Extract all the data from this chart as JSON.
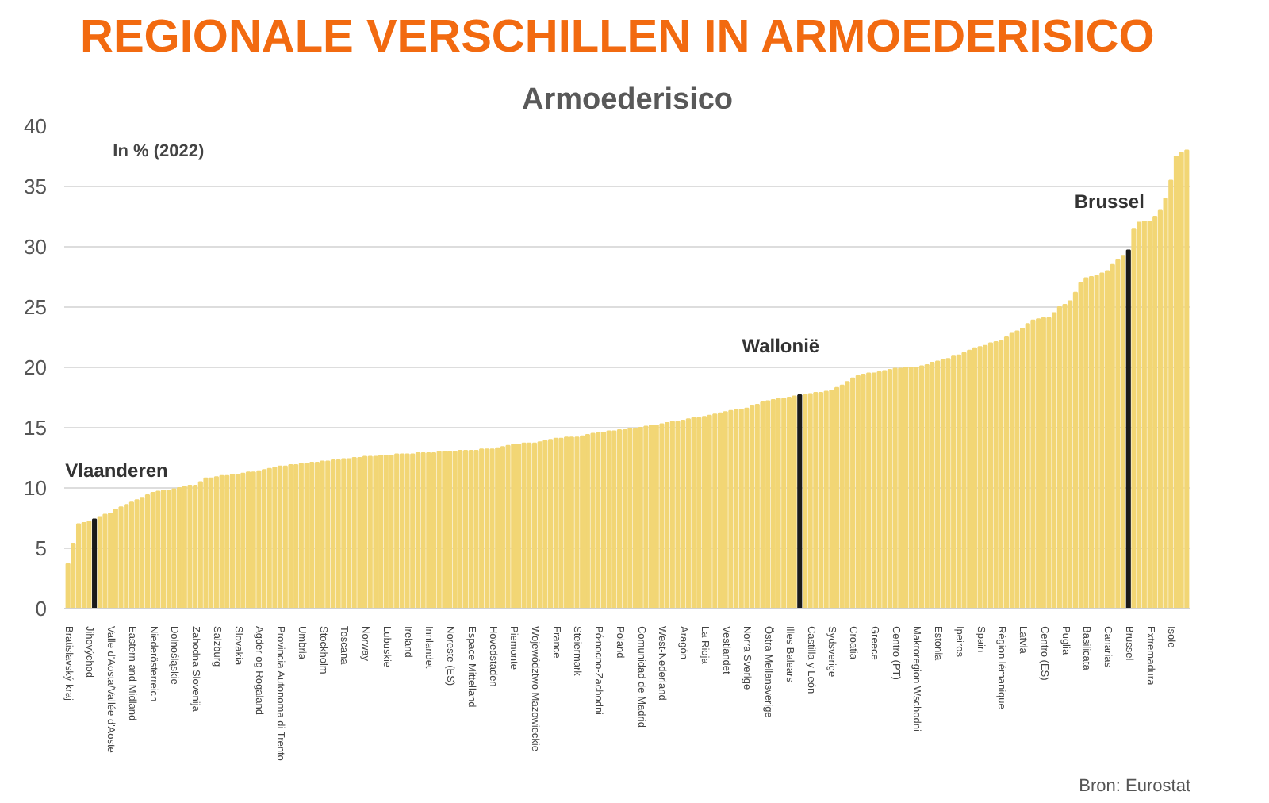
{
  "chart_data": {
    "type": "bar",
    "title": "REGIONALE VERSCHILLEN IN ARMOEDERISICO",
    "subtitle": "Armoederisico",
    "categories": [
      "Bratislavský kraj",
      null,
      null,
      null,
      "Jihovýchod",
      null,
      null,
      null,
      "Valle d'Aosta/Vallée d'Aoste",
      null,
      null,
      null,
      "Eastern and Midland",
      null,
      null,
      null,
      "Niederösterreich",
      null,
      null,
      null,
      "Dolnośląskie",
      null,
      null,
      null,
      "Zahodna Slovenija",
      null,
      null,
      null,
      "Salzburg",
      null,
      null,
      null,
      "Slovakia",
      null,
      null,
      null,
      "Agder og Rogaland",
      null,
      null,
      null,
      "Provincia Autonoma di Trento",
      null,
      null,
      null,
      "Umbria",
      null,
      null,
      null,
      "Stockholm",
      null,
      null,
      null,
      "Toscana",
      null,
      null,
      null,
      "Norway",
      null,
      null,
      null,
      "Lubuskie",
      null,
      null,
      null,
      "Ireland",
      null,
      null,
      null,
      "Innlandet",
      null,
      null,
      null,
      "Noreste (ES)",
      null,
      null,
      null,
      "Espace Mittelland",
      null,
      null,
      null,
      "Hovedstaden",
      null,
      null,
      null,
      "Piemonte",
      null,
      null,
      null,
      "Województwo Mazowieckie",
      null,
      null,
      null,
      "France",
      null,
      null,
      null,
      "Steiermark",
      null,
      null,
      null,
      "Północno-Zachodni",
      null,
      null,
      null,
      "Poland",
      null,
      null,
      null,
      "Comunidad de Madrid",
      null,
      null,
      null,
      "West-Nederland",
      null,
      null,
      null,
      "Aragón",
      null,
      null,
      null,
      "La Rioja",
      null,
      null,
      null,
      "Vestlandet",
      null,
      null,
      null,
      "Norra Sverige",
      null,
      null,
      null,
      "Östra Mellansverige",
      null,
      null,
      null,
      "Illes Balears",
      null,
      null,
      null,
      "Castilla y León",
      null,
      null,
      null,
      "Sydsverige",
      null,
      null,
      null,
      "Croatia",
      null,
      null,
      null,
      "Greece",
      null,
      null,
      null,
      "Centro (PT)",
      null,
      null,
      null,
      "Makroregion Wschodni",
      null,
      null,
      null,
      "Estonia",
      null,
      null,
      null,
      "Ipeiros",
      null,
      null,
      null,
      "Spain",
      null,
      null,
      null,
      "Région lémanique",
      null,
      null,
      null,
      "Latvia",
      null,
      null,
      null,
      "Centro (ES)",
      null,
      null,
      null,
      "Puglia",
      null,
      null,
      null,
      "Basilicata",
      null,
      null,
      null,
      "Canarias",
      null,
      null,
      null,
      "Brussel",
      null,
      null,
      null,
      "Extremadura",
      null,
      null,
      null,
      "Isole",
      null,
      null,
      null
    ],
    "values": [
      3.7,
      5.4,
      7.0,
      7.1,
      7.2,
      7.4,
      7.6,
      7.8,
      7.9,
      8.2,
      8.4,
      8.6,
      8.8,
      9.0,
      9.2,
      9.4,
      9.6,
      9.7,
      9.8,
      9.8,
      9.9,
      10.0,
      10.1,
      10.2,
      10.2,
      10.5,
      10.8,
      10.8,
      10.9,
      11.0,
      11.0,
      11.1,
      11.1,
      11.2,
      11.3,
      11.3,
      11.4,
      11.5,
      11.6,
      11.7,
      11.8,
      11.8,
      11.9,
      11.9,
      12.0,
      12.0,
      12.1,
      12.1,
      12.2,
      12.2,
      12.3,
      12.3,
      12.4,
      12.4,
      12.5,
      12.5,
      12.6,
      12.6,
      12.6,
      12.7,
      12.7,
      12.7,
      12.8,
      12.8,
      12.8,
      12.8,
      12.9,
      12.9,
      12.9,
      12.9,
      13.0,
      13.0,
      13.0,
      13.0,
      13.1,
      13.1,
      13.1,
      13.1,
      13.2,
      13.2,
      13.2,
      13.3,
      13.4,
      13.5,
      13.6,
      13.6,
      13.7,
      13.7,
      13.7,
      13.8,
      13.9,
      14.0,
      14.1,
      14.1,
      14.2,
      14.2,
      14.2,
      14.3,
      14.4,
      14.5,
      14.6,
      14.6,
      14.7,
      14.7,
      14.8,
      14.8,
      14.9,
      14.9,
      15.0,
      15.1,
      15.2,
      15.2,
      15.3,
      15.4,
      15.5,
      15.5,
      15.6,
      15.7,
      15.8,
      15.8,
      15.9,
      16.0,
      16.1,
      16.2,
      16.3,
      16.4,
      16.5,
      16.5,
      16.6,
      16.8,
      16.9,
      17.1,
      17.2,
      17.3,
      17.4,
      17.4,
      17.5,
      17.6,
      17.7,
      17.7,
      17.8,
      17.9,
      17.9,
      18.0,
      18.1,
      18.3,
      18.5,
      18.8,
      19.1,
      19.3,
      19.4,
      19.5,
      19.5,
      19.6,
      19.7,
      19.8,
      19.9,
      19.9,
      20.0,
      20.0,
      20.0,
      20.1,
      20.2,
      20.4,
      20.5,
      20.6,
      20.7,
      20.9,
      21.0,
      21.2,
      21.4,
      21.6,
      21.7,
      21.8,
      22.0,
      22.1,
      22.2,
      22.5,
      22.8,
      23.0,
      23.2,
      23.6,
      23.9,
      24.0,
      24.1,
      24.1,
      24.5,
      25.0,
      25.2,
      25.5,
      26.2,
      27.0,
      27.4,
      27.5,
      27.6,
      27.8,
      28.0,
      28.5,
      28.9,
      29.2,
      29.7,
      31.5,
      32.0,
      32.1,
      32.1,
      32.5,
      33.0,
      34.0,
      35.5,
      37.5,
      37.8,
      38.0
    ],
    "colors": [
      "#f2d675",
      "#f2d675",
      "#f2d675",
      "#f2d675",
      "#f2d675",
      "#1a1a1a",
      "#f2d675",
      "#f2d675",
      "#f2d675",
      "#f2d675",
      "#f2d675",
      "#f2d675",
      "#f2d675",
      "#f2d675",
      "#f2d675",
      "#f2d675",
      "#f2d675",
      "#f2d675",
      "#f2d675",
      "#f2d675",
      "#f2d675",
      "#f2d675",
      "#f2d675",
      "#f2d675",
      "#f2d675",
      "#f2d675",
      "#f2d675",
      "#f2d675",
      "#f2d675",
      "#f2d675",
      "#f2d675",
      "#f2d675",
      "#f2d675",
      "#f2d675",
      "#f2d675",
      "#f2d675",
      "#f2d675",
      "#f2d675",
      "#f2d675",
      "#f2d675",
      "#f2d675",
      "#f2d675",
      "#f2d675",
      "#f2d675",
      "#f2d675",
      "#f2d675",
      "#f2d675",
      "#f2d675",
      "#f2d675",
      "#f2d675",
      "#f2d675",
      "#f2d675",
      "#f2d675",
      "#f2d675",
      "#f2d675",
      "#f2d675",
      "#f2d675",
      "#f2d675",
      "#f2d675",
      "#f2d675",
      "#f2d675",
      "#f2d675",
      "#f2d675",
      "#f2d675",
      "#f2d675",
      "#f2d675",
      "#f2d675",
      "#f2d675",
      "#f2d675",
      "#f2d675",
      "#f2d675",
      "#f2d675",
      "#f2d675",
      "#f2d675",
      "#f2d675",
      "#f2d675",
      "#f2d675",
      "#f2d675",
      "#f2d675",
      "#f2d675",
      "#f2d675",
      "#f2d675",
      "#f2d675",
      "#f2d675",
      "#f2d675",
      "#f2d675",
      "#f2d675",
      "#f2d675",
      "#f2d675",
      "#f2d675",
      "#f2d675",
      "#f2d675",
      "#f2d675",
      "#f2d675",
      "#f2d675",
      "#f2d675",
      "#f2d675",
      "#f2d675",
      "#f2d675",
      "#f2d675",
      "#f2d675",
      "#f2d675",
      "#f2d675",
      "#f2d675",
      "#f2d675",
      "#f2d675",
      "#f2d675",
      "#f2d675",
      "#f2d675",
      "#f2d675",
      "#f2d675",
      "#f2d675",
      "#f2d675",
      "#f2d675",
      "#f2d675",
      "#f2d675",
      "#f2d675",
      "#f2d675",
      "#f2d675",
      "#f2d675",
      "#f2d675",
      "#f2d675",
      "#f2d675",
      "#f2d675",
      "#f2d675",
      "#f2d675",
      "#f2d675",
      "#f2d675",
      "#f2d675",
      "#f2d675",
      "#f2d675",
      "#f2d675",
      "#f2d675",
      "#f2d675",
      "#f2d675",
      "#f2d675",
      "#f2d675",
      "#f2d675",
      "#1a1a1a",
      "#f2d675",
      "#f2d675",
      "#f2d675",
      "#f2d675",
      "#f2d675",
      "#f2d675",
      "#f2d675",
      "#f2d675",
      "#f2d675",
      "#f2d675",
      "#f2d675",
      "#f2d675",
      "#f2d675",
      "#f2d675",
      "#f2d675",
      "#f2d675",
      "#f2d675",
      "#f2d675",
      "#f2d675",
      "#f2d675",
      "#f2d675",
      "#f2d675",
      "#f2d675",
      "#f2d675",
      "#f2d675",
      "#f2d675",
      "#f2d675",
      "#f2d675",
      "#f2d675",
      "#f2d675",
      "#f2d675",
      "#f2d675",
      "#f2d675",
      "#f2d675",
      "#f2d675",
      "#f2d675",
      "#f2d675",
      "#f2d675",
      "#f2d675",
      "#f2d675",
      "#f2d675",
      "#f2d675",
      "#f2d675",
      "#f2d675",
      "#f2d675",
      "#f2d675",
      "#f2d675",
      "#f2d675",
      "#f2d675",
      "#f2d675",
      "#f2d675",
      "#f2d675",
      "#f2d675",
      "#f2d675",
      "#f2d675",
      "#f2d675",
      "#f2d675",
      "#f2d675",
      "#f2d675",
      "#f2d675",
      "#f2d675",
      "#1a1a1a",
      "#f2d675",
      "#f2d675",
      "#f2d675",
      "#f2d675",
      "#f2d675",
      "#f2d675",
      "#f2d675",
      "#f2d675",
      "#f2d675",
      "#f2d675",
      "#f2d675"
    ],
    "ylim": [
      0,
      40
    ],
    "yticks": [
      0,
      5,
      10,
      15,
      20,
      25,
      30,
      35,
      40
    ],
    "grid": "y",
    "annotations": [
      "Vlaanderen",
      "Wallonië",
      "Brussel",
      "In % (2022)",
      "Bron: Eurostat"
    ]
  }
}
